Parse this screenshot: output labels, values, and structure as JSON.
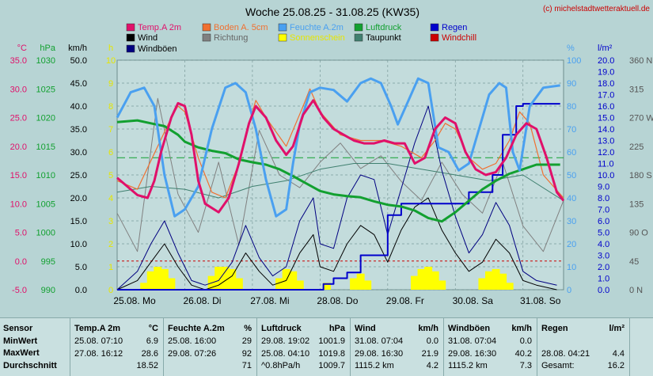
{
  "title": "Woche 25.08.25 - 31.08.25 (KW35)",
  "credit": "(c) michelstadtwetteraktuell.de",
  "colors": {
    "temp": "#e0106a",
    "boden": "#f07030",
    "feuchte": "#4aa0f0",
    "luftdruck": "#12a030",
    "wind": "#000000",
    "richtung": "#808080",
    "sonne": "#ffff00",
    "taupunkt": "#408070",
    "regen": "#0000cc",
    "windchill": "#cc0000",
    "windboeen": "#000080",
    "grid": "#7a9a9a"
  },
  "chart_data": {
    "type": "line",
    "x_ticks": [
      "25.08. Mo",
      "26.08. Di",
      "27.08. Mi",
      "28.08. Do",
      "29.08. Fr",
      "30.08. Sa",
      "31.08. So"
    ],
    "legend": [
      {
        "name": "Temp.A 2m",
        "key": "temp"
      },
      {
        "name": "Boden A. 5cm",
        "key": "boden"
      },
      {
        "name": "Feuchte A.2m",
        "key": "feuchte"
      },
      {
        "name": "Luftdruck",
        "key": "luftdruck"
      },
      {
        "name": "Regen",
        "key": "regen"
      },
      {
        "name": "Wind",
        "key": "wind"
      },
      {
        "name": "Richtung",
        "key": "richtung"
      },
      {
        "name": "Sonnenschein",
        "key": "sonne"
      },
      {
        "name": "Taupunkt",
        "key": "taupunkt"
      },
      {
        "name": "Windchill",
        "key": "windchill"
      },
      {
        "name": "Windböen",
        "key": "windboeen"
      }
    ],
    "axes": {
      "temp_c": {
        "label": "°C",
        "ticks": [
          "35.0",
          "30.0",
          "25.0",
          "20.0",
          "15.0",
          "10.0",
          "5.0",
          "0.0",
          "-5.0"
        ]
      },
      "pressure_hpa": {
        "label": "hPa",
        "ticks": [
          "1030",
          "1025",
          "1020",
          "1015",
          "1010",
          "1005",
          "1000",
          "995",
          "990"
        ]
      },
      "wind_kmh": {
        "label": "km/h",
        "ticks": [
          "50.0",
          "45.0",
          "40.0",
          "35.0",
          "30.0",
          "25.0",
          "20.0",
          "15.0",
          "10.0",
          "5.0",
          "0.0"
        ]
      },
      "sun_h": {
        "label": "h",
        "ticks": [
          "10",
          "9",
          "8",
          "7",
          "6",
          "5",
          "4",
          "3",
          "2",
          "1",
          "0"
        ]
      },
      "humidity_pct": {
        "label": "%",
        "ticks": [
          "100",
          "90",
          "80",
          "70",
          "60",
          "50",
          "40",
          "30",
          "20",
          "10",
          "0"
        ]
      },
      "rain_lm2": {
        "label": "l/m²",
        "ticks": [
          "20.0",
          "19.0",
          "18.0",
          "17.0",
          "16.0",
          "15.0",
          "14.0",
          "13.0",
          "12.0",
          "11.0",
          "10.0",
          "9.0",
          "8.0",
          "7.0",
          "6.0",
          "5.0",
          "4.0",
          "3.0",
          "2.0",
          "1.0",
          "0.0"
        ]
      },
      "direction": {
        "label": "",
        "ticks": [
          "360 N",
          "315",
          "270 W",
          "225",
          "180 S",
          "135",
          "90 O",
          "45",
          "0 N"
        ]
      }
    },
    "series": [
      {
        "name": "Temp.A 2m",
        "unit": "°C",
        "x": [
          0,
          0.15,
          0.3,
          0.45,
          0.55,
          0.65,
          0.8,
          0.9,
          1.0,
          1.1,
          1.2,
          1.3,
          1.5,
          1.65,
          1.8,
          1.95,
          2.05,
          2.2,
          2.35,
          2.5,
          2.6,
          2.75,
          2.9,
          3.05,
          3.2,
          3.35,
          3.5,
          3.65,
          3.8,
          3.95,
          4.1,
          4.25,
          4.4,
          4.55,
          4.7,
          4.85,
          5.0,
          5.15,
          5.3,
          5.45,
          5.6,
          5.75,
          5.9,
          6.05,
          6.2,
          6.35,
          6.5,
          6.6
        ],
        "y": [
          14.5,
          13,
          11.5,
          11,
          14,
          19,
          25,
          27.5,
          27,
          22,
          14,
          10,
          8.5,
          11,
          17,
          24,
          27,
          25,
          21,
          18.5,
          20,
          25.5,
          28,
          25,
          23,
          22,
          21,
          20.5,
          20.5,
          21,
          20.5,
          20.5,
          17,
          18,
          23,
          25,
          24,
          19,
          16,
          15,
          15.5,
          18,
          22,
          24,
          23,
          18,
          12,
          10.5
        ]
      },
      {
        "name": "Boden A. 5cm",
        "unit": "°C",
        "x": [
          0,
          0.3,
          0.6,
          0.8,
          0.9,
          1.0,
          1.2,
          1.4,
          1.6,
          1.8,
          1.95,
          2.05,
          2.2,
          2.5,
          2.75,
          2.85,
          3.0,
          3.3,
          3.6,
          3.9,
          4.2,
          4.5,
          4.7,
          4.85,
          5.0,
          5.2,
          5.4,
          5.6,
          5.8,
          5.95,
          6.1,
          6.3,
          6.6
        ],
        "y": [
          14,
          12.5,
          20,
          25,
          27,
          26,
          18,
          12,
          11,
          17,
          24,
          28,
          25,
          20,
          27,
          30,
          26,
          22,
          21,
          21,
          20,
          18,
          21,
          24,
          23,
          18,
          16,
          17,
          21,
          26,
          24,
          15,
          11
        ]
      },
      {
        "name": "Feuchte A.2m",
        "unit": "%",
        "x": [
          0,
          0.2,
          0.4,
          0.55,
          0.7,
          0.85,
          1.0,
          1.2,
          1.4,
          1.6,
          1.75,
          1.9,
          2.05,
          2.2,
          2.35,
          2.5,
          2.6,
          2.7,
          2.85,
          3.0,
          3.2,
          3.4,
          3.6,
          3.75,
          3.9,
          4.05,
          4.15,
          4.3,
          4.45,
          4.6,
          4.75,
          4.9,
          5.05,
          5.2,
          5.35,
          5.5,
          5.65,
          5.75,
          5.85,
          5.95,
          6.1,
          6.3,
          6.55
        ],
        "y": [
          75,
          86,
          88,
          80,
          50,
          32,
          35,
          45,
          70,
          88,
          90,
          86,
          70,
          48,
          32,
          35,
          55,
          72,
          86,
          88,
          87,
          82,
          90,
          92,
          90,
          80,
          72,
          82,
          92,
          90,
          62,
          60,
          52,
          55,
          70,
          85,
          90,
          88,
          60,
          52,
          80,
          88,
          89
        ]
      },
      {
        "name": "Luftdruck",
        "unit": "hPa",
        "x": [
          0,
          0.3,
          0.5,
          0.7,
          0.9,
          1.0,
          1.2,
          1.4,
          1.6,
          1.8,
          2.0,
          2.2,
          2.4,
          2.6,
          2.8,
          3.0,
          3.2,
          3.4,
          3.6,
          3.8,
          4.0,
          4.2,
          4.4,
          4.6,
          4.8,
          5.0,
          5.2,
          5.4,
          5.6,
          5.8,
          6.0,
          6.2,
          6.55
        ],
        "y": [
          1019.2,
          1019.5,
          1019.0,
          1018.5,
          1017.0,
          1015.8,
          1014.8,
          1014.2,
          1013.8,
          1012.7,
          1012.2,
          1011.8,
          1011.0,
          1009.8,
          1008.5,
          1007.2,
          1006.6,
          1006.3,
          1006.1,
          1005.4,
          1004.8,
          1004.5,
          1003.8,
          1002.5,
          1001.9,
          1003.5,
          1005.5,
          1007.5,
          1009.0,
          1010.2,
          1011.0,
          1011.8,
          1011.8
        ]
      },
      {
        "name": "Regen",
        "unit": "l/m²",
        "x": [
          0,
          2.9,
          3.05,
          3.2,
          3.4,
          3.6,
          4.0,
          4.2,
          4.6,
          5.0,
          5.2,
          5.45,
          5.55,
          5.7,
          5.9,
          6.0,
          6.55
        ],
        "y": [
          0,
          0,
          0.5,
          1.0,
          1.5,
          3.0,
          6.5,
          7.5,
          7.5,
          7.5,
          8.5,
          8.5,
          10.0,
          13.5,
          16.0,
          16.2,
          16.2
        ]
      },
      {
        "name": "Wind",
        "unit": "km/h",
        "x": [
          0,
          0.3,
          0.5,
          0.7,
          0.9,
          1.1,
          1.3,
          1.5,
          1.7,
          1.9,
          2.1,
          2.3,
          2.5,
          2.7,
          2.9,
          3.0,
          3.2,
          3.4,
          3.6,
          3.8,
          4.0,
          4.2,
          4.4,
          4.6,
          4.8,
          5.0,
          5.2,
          5.4,
          5.6,
          5.8,
          6.0,
          6.2,
          6.5
        ],
        "y": [
          0,
          2,
          6,
          10,
          5,
          1,
          0,
          1,
          3,
          8,
          4,
          1,
          2,
          8,
          12,
          5,
          4,
          10,
          14,
          12,
          6,
          13,
          18,
          20,
          13,
          8,
          4,
          6,
          11,
          8,
          2,
          1,
          0
        ]
      },
      {
        "name": "Windböen",
        "unit": "km/h",
        "x": [
          0,
          0.3,
          0.5,
          0.7,
          0.9,
          1.1,
          1.3,
          1.5,
          1.7,
          1.9,
          2.1,
          2.3,
          2.5,
          2.7,
          2.9,
          3.0,
          3.2,
          3.4,
          3.6,
          3.8,
          4.0,
          4.2,
          4.4,
          4.6,
          4.8,
          5.0,
          5.2,
          5.4,
          5.6,
          5.8,
          6.0,
          6.2,
          6.5
        ],
        "y": [
          0,
          4,
          10,
          15,
          8,
          2,
          1,
          2,
          6,
          14,
          7,
          3,
          5,
          15,
          20,
          10,
          9,
          20,
          25,
          24,
          12,
          22,
          32,
          40,
          26,
          16,
          8,
          12,
          19,
          14,
          4,
          2,
          1
        ]
      },
      {
        "name": "Taupunkt",
        "unit": "°C",
        "x": [
          0,
          0.5,
          1.0,
          1.5,
          2.0,
          2.5,
          3.0,
          3.5,
          4.0,
          4.5,
          5.0,
          5.5,
          6.0,
          6.6
        ],
        "y": [
          12,
          13,
          12.5,
          11,
          13,
          14,
          16,
          17,
          17,
          16,
          15,
          14,
          15,
          10.5
        ]
      },
      {
        "name": "Richtung",
        "unit": "°",
        "x": [
          0,
          0.3,
          0.6,
          0.9,
          1.2,
          1.5,
          1.8,
          2.1,
          2.4,
          2.7,
          3.0,
          3.3,
          3.6,
          3.9,
          4.2,
          4.5,
          4.8,
          5.1,
          5.4,
          5.7,
          6.0,
          6.3,
          6.6
        ],
        "y": [
          120,
          60,
          300,
          150,
          90,
          200,
          70,
          250,
          180,
          160,
          200,
          230,
          190,
          210,
          170,
          140,
          200,
          150,
          120,
          200,
          100,
          60,
          140
        ]
      }
    ],
    "sun": {
      "unit": "h",
      "x": [
        0.4,
        0.5,
        0.6,
        0.7,
        0.8,
        1.4,
        1.5,
        1.6,
        1.7,
        1.8,
        2.4,
        2.5,
        2.6,
        2.7,
        3.1,
        3.5,
        3.6,
        3.7,
        4.4,
        4.5,
        4.6,
        4.7,
        4.8,
        5.4,
        5.5,
        5.6,
        5.7,
        5.8
      ],
      "y": [
        0.3,
        0.8,
        1.0,
        0.9,
        0.5,
        0.6,
        1.0,
        1.0,
        0.9,
        0.5,
        0.5,
        0.9,
        0.8,
        0.4,
        0.3,
        0.5,
        0.7,
        0.4,
        0.6,
        0.9,
        1.0,
        0.8,
        0.4,
        0.5,
        0.8,
        0.9,
        0.7,
        0.3
      ]
    },
    "reference_lines": [
      {
        "value": 0,
        "axis": "temp_c",
        "color": "#cc0000"
      },
      {
        "value": 1013,
        "axis": "pressure_hpa",
        "color": "#12a030"
      }
    ],
    "grid": true
  },
  "stats": {
    "sensor": {
      "h": "Sensor",
      "rows": [
        "MinWert",
        "MaxWert",
        "Durchschnitt"
      ]
    },
    "temp": {
      "h": "Temp.A 2m",
      "u": "°C",
      "rows": [
        [
          "25.08.  07:10",
          "6.9"
        ],
        [
          "27.08.  16:12",
          "28.6"
        ],
        [
          "",
          "18.52"
        ]
      ]
    },
    "feuchte": {
      "h": "Feuchte A.2m",
      "u": "%",
      "rows": [
        [
          "25.08.  16:00",
          "29"
        ],
        [
          "29.08.  07:26",
          "92"
        ],
        [
          "",
          "71"
        ]
      ]
    },
    "druck": {
      "h": "Luftdruck",
      "u": "hPa",
      "rows": [
        [
          "29.08.  19:02",
          "1001.9"
        ],
        [
          "25.08.  04:10",
          "1019.8"
        ],
        [
          "^0.8hPa/h",
          "1009.7"
        ]
      ]
    },
    "wind": {
      "h": "Wind",
      "u": "km/h",
      "rows": [
        [
          "31.08.  07:04",
          "0.0"
        ],
        [
          "29.08.  16:30",
          "21.9"
        ],
        [
          "1115.2 km",
          "4.2"
        ]
      ]
    },
    "boeen": {
      "h": "Windböen",
      "u": "km/h",
      "rows": [
        [
          "31.08.  07:04",
          "0.0"
        ],
        [
          "29.08.  16:30",
          "40.2"
        ],
        [
          "1115.2 km",
          "7.3"
        ]
      ]
    },
    "regen": {
      "h": "Regen",
      "u": "l/m²",
      "rows": [
        [
          "",
          ""
        ],
        [
          "28.08.  04:21",
          "4.4"
        ],
        [
          "Gesamt:",
          "16.2"
        ]
      ]
    }
  }
}
